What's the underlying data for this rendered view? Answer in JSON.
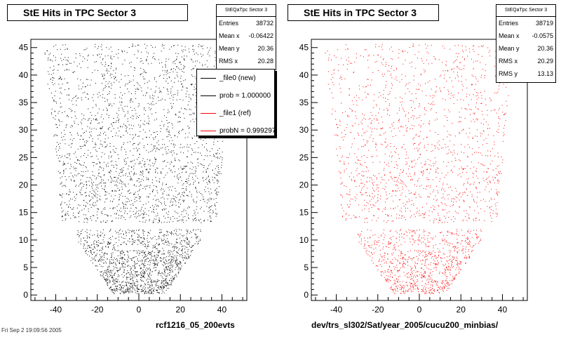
{
  "chart_data": [
    {
      "type": "scatter",
      "title": "StE Hits in TPC Sector 3",
      "xlabel": "rcf1216_05_200evts",
      "ylabel": "",
      "xlim": [
        -52,
        52
      ],
      "ylim": [
        -1,
        46.5
      ],
      "xticks": [
        "-40",
        "-20",
        "0",
        "20",
        "40"
      ],
      "yticks": [
        "0",
        "5",
        "10",
        "15",
        "20",
        "25",
        "30",
        "35",
        "40",
        "45"
      ],
      "color": "#000000",
      "stats": {
        "header": "StEQaTpc Sector 3",
        "rows": [
          [
            "Entries",
            "38732"
          ],
          [
            "Mean x",
            "-0.06422"
          ],
          [
            "Mean y",
            "20.36"
          ],
          [
            "RMS x",
            "20.28"
          ]
        ]
      },
      "legend": [
        {
          "label": "_file0 (new)",
          "color": "#000000"
        },
        {
          "label": "prob = 1.000000",
          "color": "#000000"
        },
        {
          "label": "_file1 (ref)",
          "color": "#ff0000"
        },
        {
          "label": "probN = 0.999297",
          "color": "#ff0000"
        }
      ]
    },
    {
      "type": "scatter",
      "title": "StE Hits in TPC Sector 3",
      "xlabel": "dev/trs_sl302/Sat/year_2005/cucu200_minbias/",
      "ylabel": "",
      "xlim": [
        -52,
        52
      ],
      "ylim": [
        -1,
        46.5
      ],
      "xticks": [
        "-40",
        "-20",
        "0",
        "20",
        "40"
      ],
      "yticks": [
        "0",
        "5",
        "10",
        "15",
        "20",
        "25",
        "30",
        "35",
        "40",
        "45"
      ],
      "color": "#ff0000",
      "stats": {
        "header": "StEQaTpc Sector 3",
        "rows": [
          [
            "Entries",
            "38719"
          ],
          [
            "Mean x",
            "-0.0575"
          ],
          [
            "Mean y",
            "20.36"
          ],
          [
            "RMS x",
            "20.29"
          ],
          [
            "RMS y",
            "13.13"
          ]
        ]
      }
    }
  ],
  "footer": "Fri Sep  2 19:09:56 2005"
}
